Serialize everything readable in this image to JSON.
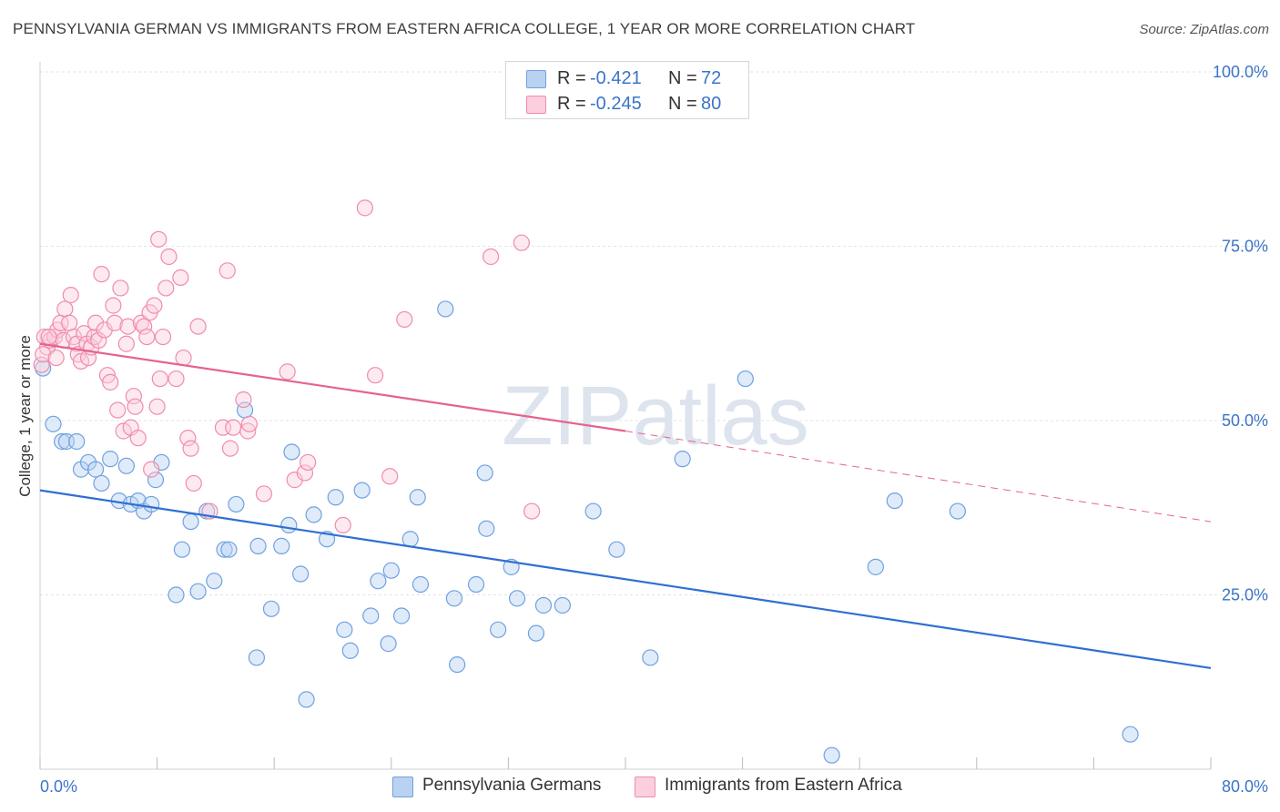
{
  "title": "PENNSYLVANIA GERMAN VS IMMIGRANTS FROM EASTERN AFRICA COLLEGE, 1 YEAR OR MORE CORRELATION CHART",
  "source": "Source: ZipAtlas.com",
  "watermark": "ZIPatlas",
  "stats": [
    {
      "r_label": "R =",
      "r_value": "-0.421",
      "n_label": "N =",
      "n_value": "72",
      "color": "#6fa1e0"
    },
    {
      "r_label": "R =",
      "r_value": "-0.245",
      "n_label": "N =",
      "n_value": "80",
      "color": "#f08cab"
    }
  ],
  "legend": [
    {
      "label": "Pennsylvania Germans",
      "color": "#6fa1e0"
    },
    {
      "label": "Immigrants from Eastern Africa",
      "color": "#f08cab"
    }
  ],
  "colors": {
    "value_text": "#3b74c8",
    "blue_line": "#2f6fd1",
    "pink_line": "#e4648f"
  },
  "chart_data": {
    "type": "scatter",
    "title": "PENNSYLVANIA GERMAN VS IMMIGRANTS FROM EASTERN AFRICA COLLEGE, 1 YEAR OR MORE CORRELATION CHART",
    "xlabel": "",
    "ylabel": "College, 1 year or more",
    "xlim": [
      0,
      80
    ],
    "ylim": [
      0,
      100
    ],
    "x_tick_labels": [
      "0.0%",
      "80.0%"
    ],
    "y_tick_labels": [
      "100.0%",
      "75.0%",
      "50.0%",
      "25.0%"
    ],
    "y_ticks": [
      100,
      75,
      50,
      25
    ],
    "grid": true,
    "series": [
      {
        "name": "Pennsylvania Germans",
        "color": "#6fa1e0",
        "points": [
          [
            0.2,
            57.5
          ],
          [
            0.9,
            49.5
          ],
          [
            1.5,
            47.0
          ],
          [
            1.8,
            47.0
          ],
          [
            2.5,
            47.0
          ],
          [
            2.8,
            43.0
          ],
          [
            3.3,
            44.0
          ],
          [
            3.8,
            43.0
          ],
          [
            4.2,
            41.0
          ],
          [
            4.8,
            44.5
          ],
          [
            5.4,
            38.5
          ],
          [
            5.9,
            43.5
          ],
          [
            6.2,
            38.0
          ],
          [
            6.7,
            38.5
          ],
          [
            7.1,
            37.0
          ],
          [
            7.6,
            38.0
          ],
          [
            7.9,
            41.5
          ],
          [
            8.3,
            44.0
          ],
          [
            9.3,
            25.0
          ],
          [
            9.7,
            31.5
          ],
          [
            10.3,
            35.5
          ],
          [
            10.8,
            25.5
          ],
          [
            11.4,
            37.0
          ],
          [
            11.9,
            27.0
          ],
          [
            12.6,
            31.5
          ],
          [
            12.9,
            31.5
          ],
          [
            13.4,
            38.0
          ],
          [
            14.0,
            51.5
          ],
          [
            14.8,
            16.0
          ],
          [
            14.9,
            32.0
          ],
          [
            15.8,
            23.0
          ],
          [
            16.5,
            32.0
          ],
          [
            17.0,
            35.0
          ],
          [
            17.2,
            45.5
          ],
          [
            17.8,
            28.0
          ],
          [
            18.2,
            10.0
          ],
          [
            18.7,
            36.5
          ],
          [
            19.6,
            33.0
          ],
          [
            20.2,
            39.0
          ],
          [
            20.8,
            20.0
          ],
          [
            21.2,
            17.0
          ],
          [
            22.0,
            40.0
          ],
          [
            22.6,
            22.0
          ],
          [
            23.1,
            27.0
          ],
          [
            23.8,
            18.0
          ],
          [
            24.0,
            28.5
          ],
          [
            24.7,
            22.0
          ],
          [
            25.3,
            33.0
          ],
          [
            25.8,
            39.0
          ],
          [
            26.0,
            26.5
          ],
          [
            27.7,
            66.0
          ],
          [
            28.3,
            24.5
          ],
          [
            28.5,
            15.0
          ],
          [
            29.8,
            26.5
          ],
          [
            30.4,
            42.5
          ],
          [
            30.5,
            34.5
          ],
          [
            31.3,
            20.0
          ],
          [
            32.2,
            29.0
          ],
          [
            32.6,
            24.5
          ],
          [
            33.9,
            19.5
          ],
          [
            34.4,
            23.5
          ],
          [
            35.7,
            23.5
          ],
          [
            37.8,
            37.0
          ],
          [
            39.4,
            31.5
          ],
          [
            41.7,
            16.0
          ],
          [
            43.9,
            44.5
          ],
          [
            48.2,
            56.0
          ],
          [
            54.1,
            2.0
          ],
          [
            57.1,
            29.0
          ],
          [
            58.4,
            38.5
          ],
          [
            62.7,
            37.0
          ],
          [
            74.5,
            5.0
          ]
        ]
      },
      {
        "name": "Immigrants from Eastern Africa",
        "color": "#f08cab",
        "points": [
          [
            0.3,
            62.0
          ],
          [
            0.5,
            60.5
          ],
          [
            0.7,
            61.5
          ],
          [
            1.0,
            62.0
          ],
          [
            1.2,
            63.0
          ],
          [
            1.4,
            64.0
          ],
          [
            1.6,
            61.5
          ],
          [
            1.7,
            66.0
          ],
          [
            2.0,
            64.0
          ],
          [
            2.1,
            68.0
          ],
          [
            2.3,
            62.0
          ],
          [
            2.5,
            61.0
          ],
          [
            2.6,
            59.5
          ],
          [
            2.8,
            58.5
          ],
          [
            3.0,
            62.5
          ],
          [
            3.2,
            61.0
          ],
          [
            3.3,
            59.0
          ],
          [
            3.5,
            60.5
          ],
          [
            3.7,
            62.0
          ],
          [
            3.8,
            64.0
          ],
          [
            4.0,
            61.5
          ],
          [
            4.2,
            71.0
          ],
          [
            4.4,
            63.0
          ],
          [
            4.6,
            56.5
          ],
          [
            4.8,
            55.5
          ],
          [
            5.0,
            66.5
          ],
          [
            5.1,
            64.0
          ],
          [
            5.3,
            51.5
          ],
          [
            5.5,
            69.0
          ],
          [
            5.7,
            48.5
          ],
          [
            5.9,
            61.0
          ],
          [
            6.0,
            63.5
          ],
          [
            6.2,
            49.0
          ],
          [
            6.4,
            53.5
          ],
          [
            6.5,
            52.0
          ],
          [
            6.7,
            47.5
          ],
          [
            6.9,
            64.0
          ],
          [
            7.1,
            63.5
          ],
          [
            7.3,
            62.0
          ],
          [
            7.5,
            65.5
          ],
          [
            7.6,
            43.0
          ],
          [
            7.8,
            66.5
          ],
          [
            8.0,
            52.0
          ],
          [
            8.1,
            76.0
          ],
          [
            8.2,
            56.0
          ],
          [
            8.4,
            62.0
          ],
          [
            8.6,
            69.0
          ],
          [
            8.8,
            73.5
          ],
          [
            9.3,
            56.0
          ],
          [
            9.6,
            70.5
          ],
          [
            9.8,
            59.0
          ],
          [
            10.1,
            47.5
          ],
          [
            10.3,
            46.0
          ],
          [
            10.5,
            41.0
          ],
          [
            10.8,
            63.5
          ],
          [
            11.6,
            37.0
          ],
          [
            12.5,
            49.0
          ],
          [
            12.8,
            71.5
          ],
          [
            13.0,
            46.0
          ],
          [
            13.2,
            49.0
          ],
          [
            13.9,
            53.0
          ],
          [
            14.2,
            48.5
          ],
          [
            14.3,
            49.5
          ],
          [
            15.3,
            39.5
          ],
          [
            16.9,
            57.0
          ],
          [
            17.4,
            41.5
          ],
          [
            18.1,
            42.5
          ],
          [
            18.3,
            44.0
          ],
          [
            20.7,
            35.0
          ],
          [
            22.2,
            80.5
          ],
          [
            22.9,
            56.5
          ],
          [
            23.9,
            42.0
          ],
          [
            24.9,
            64.5
          ],
          [
            30.8,
            73.5
          ],
          [
            32.9,
            75.5
          ],
          [
            33.6,
            37.0
          ],
          [
            0.1,
            58.0
          ],
          [
            0.2,
            59.5
          ],
          [
            0.6,
            62.0
          ],
          [
            1.1,
            59.0
          ]
        ]
      }
    ],
    "trend_lines": [
      {
        "series": "Pennsylvania Germans",
        "x": [
          0,
          80
        ],
        "y": [
          40.0,
          14.5
        ],
        "style": "solid"
      },
      {
        "series": "Immigrants from Eastern Africa",
        "x": [
          0,
          40
        ],
        "y": [
          61.0,
          48.5
        ],
        "style": "solid"
      },
      {
        "series": "Immigrants from Eastern Africa",
        "x": [
          40,
          80
        ],
        "y": [
          48.5,
          35.5
        ],
        "style": "dashed"
      }
    ]
  }
}
